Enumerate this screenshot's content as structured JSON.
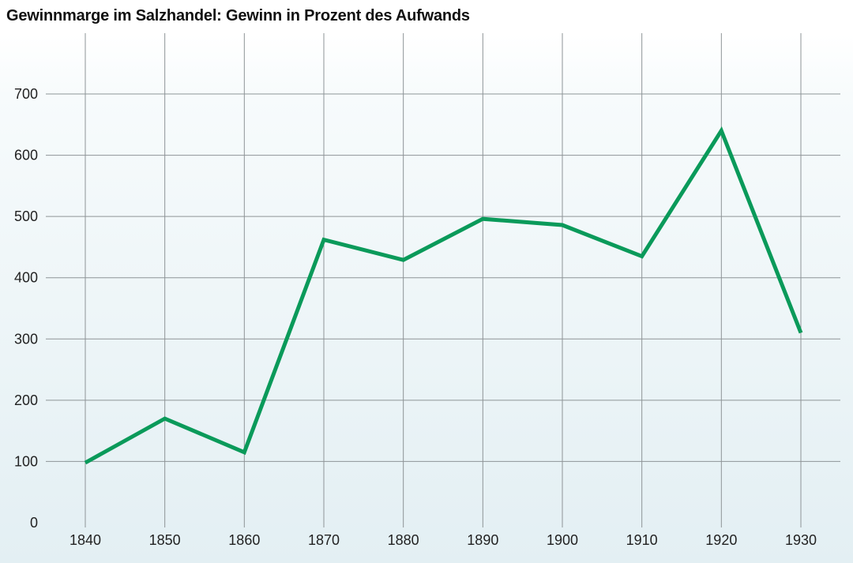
{
  "chart_data": {
    "type": "line",
    "title": "Gewinnmarge im Salzhandel: Gewinn in Prozent des Aufwands",
    "xlabel": "",
    "ylabel": "",
    "x": [
      1840,
      1850,
      1860,
      1870,
      1880,
      1890,
      1900,
      1910,
      1920,
      1930
    ],
    "series": [
      {
        "values": [
          98,
          170,
          115,
          462,
          429,
          496,
          486,
          435,
          640,
          310
        ]
      }
    ],
    "xticks": [
      "1840",
      "1850",
      "1860",
      "1870",
      "1880",
      "1890",
      "1900",
      "1910",
      "1920",
      "1930"
    ],
    "yticks": [
      "0",
      "100",
      "200",
      "300",
      "400",
      "500",
      "600",
      "700"
    ],
    "ylim": [
      0,
      800
    ],
    "grid": true,
    "line_color": "#0a9a5a",
    "grid_color": "#8e9497"
  }
}
